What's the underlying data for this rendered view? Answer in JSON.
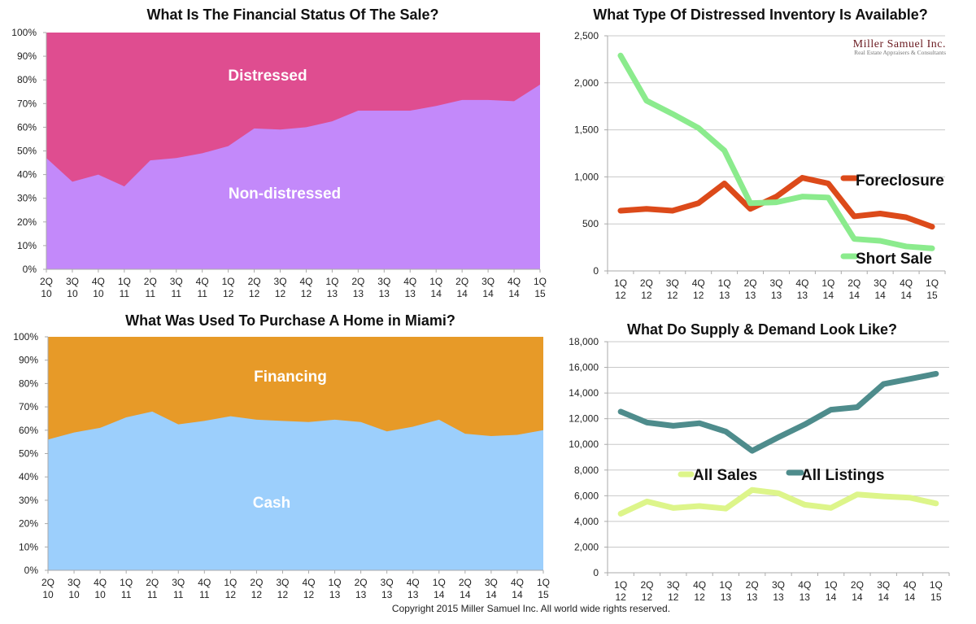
{
  "copyright": "Copyright 2015 Miller Samuel Inc. All world wide rights reserved.",
  "logo": {
    "name": "Miller Samuel Inc.",
    "tagline": "Real Estate Appraisers & Consultants"
  },
  "chart_data": [
    {
      "id": "financial-status",
      "type": "area",
      "stacked_percent": true,
      "title": "What Is The Financial Status Of The Sale?",
      "xlabel": "",
      "ylabel": "",
      "ylim": [
        0,
        100
      ],
      "yticks": [
        "0%",
        "10%",
        "20%",
        "30%",
        "40%",
        "50%",
        "60%",
        "70%",
        "80%",
        "90%",
        "100%"
      ],
      "categories": [
        [
          "2Q",
          "10"
        ],
        [
          "3Q",
          "10"
        ],
        [
          "4Q",
          "10"
        ],
        [
          "1Q",
          "11"
        ],
        [
          "2Q",
          "11"
        ],
        [
          "3Q",
          "11"
        ],
        [
          "4Q",
          "11"
        ],
        [
          "1Q",
          "12"
        ],
        [
          "2Q",
          "12"
        ],
        [
          "3Q",
          "12"
        ],
        [
          "4Q",
          "12"
        ],
        [
          "1Q",
          "13"
        ],
        [
          "2Q",
          "13"
        ],
        [
          "3Q",
          "13"
        ],
        [
          "4Q",
          "13"
        ],
        [
          "1Q",
          "14"
        ],
        [
          "2Q",
          "14"
        ],
        [
          "3Q",
          "14"
        ],
        [
          "4Q",
          "14"
        ],
        [
          "1Q",
          "15"
        ]
      ],
      "series": [
        {
          "name": "Non-distressed",
          "color": "#c389fa",
          "values": [
            47,
            37,
            40,
            35,
            46,
            47,
            49,
            52,
            59.5,
            59,
            60,
            62.5,
            67,
            67,
            67,
            69,
            71.5,
            71.5,
            71,
            78
          ]
        },
        {
          "name": "Distressed",
          "color": "#df4d90",
          "values": [
            53,
            63,
            60,
            65,
            54,
            53,
            51,
            48,
            40.5,
            41,
            40,
            37.5,
            33,
            33,
            33,
            31,
            28.5,
            28.5,
            29,
            22
          ]
        }
      ],
      "annotations": [
        "Distressed",
        "Non-distressed"
      ],
      "grid": false
    },
    {
      "id": "distressed-inventory",
      "type": "line",
      "title": "What Type Of Distressed Inventory Is Available?",
      "xlabel": "",
      "ylabel": "",
      "ylim": [
        0,
        2500
      ],
      "yticks": [
        "0",
        "500",
        "1,000",
        "1,500",
        "2,000",
        "2,500"
      ],
      "categories": [
        [
          "1Q",
          "12"
        ],
        [
          "2Q",
          "12"
        ],
        [
          "3Q",
          "12"
        ],
        [
          "4Q",
          "12"
        ],
        [
          "1Q",
          "13"
        ],
        [
          "2Q",
          "13"
        ],
        [
          "3Q",
          "13"
        ],
        [
          "4Q",
          "13"
        ],
        [
          "1Q",
          "14"
        ],
        [
          "2Q",
          "14"
        ],
        [
          "3Q",
          "14"
        ],
        [
          "4Q",
          "14"
        ],
        [
          "1Q",
          "15"
        ]
      ],
      "series": [
        {
          "name": "Foreclosure",
          "color": "#dc4a1a",
          "values": [
            640,
            660,
            640,
            720,
            930,
            660,
            790,
            990,
            930,
            580,
            610,
            570,
            470
          ]
        },
        {
          "name": "Short Sale",
          "color": "#8beb8d",
          "values": [
            2290,
            1810,
            1670,
            1520,
            1280,
            720,
            730,
            790,
            780,
            340,
            320,
            260,
            240
          ]
        }
      ],
      "legend": "right",
      "grid": true
    },
    {
      "id": "purchase-method",
      "type": "area",
      "stacked_percent": true,
      "title": "What Was Used To Purchase A Home in Miami?",
      "xlabel": "",
      "ylabel": "",
      "ylim": [
        0,
        100
      ],
      "yticks": [
        "0%",
        "10%",
        "20%",
        "30%",
        "40%",
        "50%",
        "60%",
        "70%",
        "80%",
        "90%",
        "100%"
      ],
      "categories": [
        [
          "2Q",
          "10"
        ],
        [
          "3Q",
          "10"
        ],
        [
          "4Q",
          "10"
        ],
        [
          "1Q",
          "11"
        ],
        [
          "2Q",
          "11"
        ],
        [
          "3Q",
          "11"
        ],
        [
          "4Q",
          "11"
        ],
        [
          "1Q",
          "12"
        ],
        [
          "2Q",
          "12"
        ],
        [
          "3Q",
          "12"
        ],
        [
          "4Q",
          "12"
        ],
        [
          "1Q",
          "13"
        ],
        [
          "2Q",
          "13"
        ],
        [
          "3Q",
          "13"
        ],
        [
          "4Q",
          "13"
        ],
        [
          "1Q",
          "14"
        ],
        [
          "2Q",
          "14"
        ],
        [
          "3Q",
          "14"
        ],
        [
          "4Q",
          "14"
        ],
        [
          "1Q",
          "15"
        ]
      ],
      "series": [
        {
          "name": "Cash",
          "color": "#9ccffc",
          "values": [
            56,
            59,
            61,
            65.5,
            68,
            62.5,
            64,
            66,
            64.5,
            64,
            63.5,
            64.5,
            63.5,
            59.5,
            61.5,
            64.5,
            58.5,
            57.5,
            58,
            60
          ]
        },
        {
          "name": "Financing",
          "color": "#e79a28",
          "values": [
            44,
            41,
            39,
            34.5,
            32,
            37.5,
            36,
            34,
            35.5,
            36,
            36.5,
            35.5,
            36.5,
            40.5,
            38.5,
            35.5,
            41.5,
            42.5,
            42,
            40
          ]
        }
      ],
      "annotations": [
        "Financing",
        "Cash"
      ],
      "grid": false
    },
    {
      "id": "supply-demand",
      "type": "line",
      "title": "What Do Supply & Demand Look Like?",
      "xlabel": "",
      "ylabel": "",
      "ylim": [
        0,
        18000
      ],
      "yticks": [
        "0",
        "2,000",
        "4,000",
        "6,000",
        "8,000",
        "10,000",
        "12,000",
        "14,000",
        "16,000",
        "18,000"
      ],
      "categories": [
        [
          "1Q",
          "12"
        ],
        [
          "2Q",
          "12"
        ],
        [
          "3Q",
          "12"
        ],
        [
          "4Q",
          "12"
        ],
        [
          "1Q",
          "13"
        ],
        [
          "2Q",
          "13"
        ],
        [
          "3Q",
          "13"
        ],
        [
          "4Q",
          "13"
        ],
        [
          "1Q",
          "14"
        ],
        [
          "2Q",
          "14"
        ],
        [
          "3Q",
          "14"
        ],
        [
          "4Q",
          "14"
        ],
        [
          "1Q",
          "15"
        ]
      ],
      "series": [
        {
          "name": "All Sales",
          "color": "#ddf58a",
          "values": [
            4600,
            5550,
            5050,
            5200,
            5000,
            6450,
            6200,
            5300,
            5050,
            6100,
            5950,
            5850,
            5400
          ]
        },
        {
          "name": "All Listings",
          "color": "#4e8c8c",
          "values": [
            12550,
            11700,
            11450,
            11650,
            11000,
            9500,
            10550,
            11550,
            12700,
            12900,
            14700,
            15100,
            15500
          ]
        }
      ],
      "legend": "inside-middle",
      "grid": true
    }
  ]
}
